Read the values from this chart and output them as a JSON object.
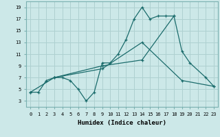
{
  "title": "",
  "xlabel": "Humidex (Indice chaleur)",
  "background_color": "#cce8e8",
  "grid_color": "#aed0d0",
  "line_color": "#1a6b6b",
  "xlim": [
    -0.5,
    23.5
  ],
  "ylim": [
    2,
    20
  ],
  "xtick_labels": [
    "0",
    "1",
    "2",
    "3",
    "4",
    "5",
    "6",
    "7",
    "8",
    "9",
    "10",
    "11",
    "12",
    "13",
    "14",
    "15",
    "16",
    "17",
    "18",
    "19",
    "20",
    "21",
    "22",
    "23"
  ],
  "ytick_labels": [
    "3",
    "5",
    "7",
    "9",
    "11",
    "13",
    "15",
    "17",
    "19"
  ],
  "ytick_vals": [
    3,
    5,
    7,
    9,
    11,
    13,
    15,
    17,
    19
  ],
  "line1_x": [
    0,
    1,
    2,
    3,
    4,
    5,
    6,
    7,
    8,
    9,
    10,
    11,
    12,
    13,
    14,
    15,
    16,
    17,
    18
  ],
  "line1_y": [
    4.5,
    4.5,
    6.5,
    7,
    7,
    6.5,
    5,
    3,
    4.5,
    9.5,
    9.5,
    11,
    13.5,
    17,
    19,
    17,
    17.5,
    17.5,
    17.5
  ],
  "line2_x": [
    0,
    3,
    9,
    14,
    19,
    23
  ],
  "line2_y": [
    4.5,
    7,
    8.5,
    13,
    6.5,
    5.5
  ],
  "line3_x": [
    3,
    9,
    14,
    18,
    19,
    20,
    22,
    23
  ],
  "line3_y": [
    7,
    9,
    10,
    17.5,
    11.5,
    9.5,
    7,
    5.5
  ]
}
